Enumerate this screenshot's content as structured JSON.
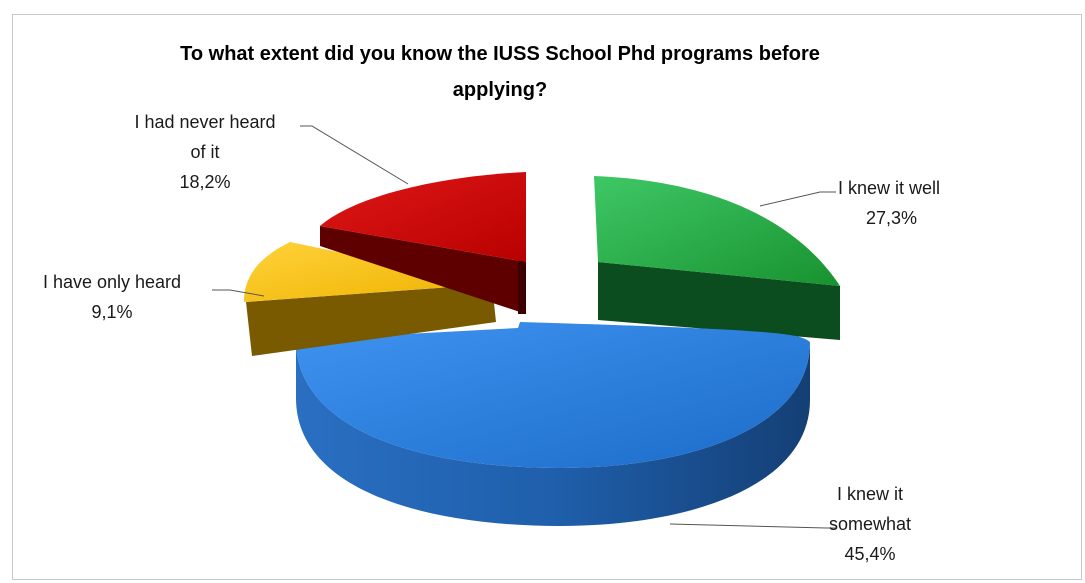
{
  "chart_data": {
    "type": "pie",
    "title_line1": "To what extent did you know the IUSS School Phd programs before",
    "title_line2": "applying?",
    "slices": [
      {
        "label_line1": "I knew it well",
        "label_line2": "",
        "value": 27.3,
        "value_label": "27,3%",
        "color": "#1fa33f"
      },
      {
        "label_line1": "I knew it",
        "label_line2": "somewhat",
        "value": 45.4,
        "value_label": "45,4%",
        "color": "#2a7ad6"
      },
      {
        "label_line1": "I have only heard",
        "label_line2": "",
        "value": 9.1,
        "value_label": "9,1%",
        "color": "#f2b705"
      },
      {
        "label_line1": "I had never heard",
        "label_line2": "of it",
        "value": 18.2,
        "value_label": "18,2%",
        "color": "#cc0000"
      }
    ]
  }
}
